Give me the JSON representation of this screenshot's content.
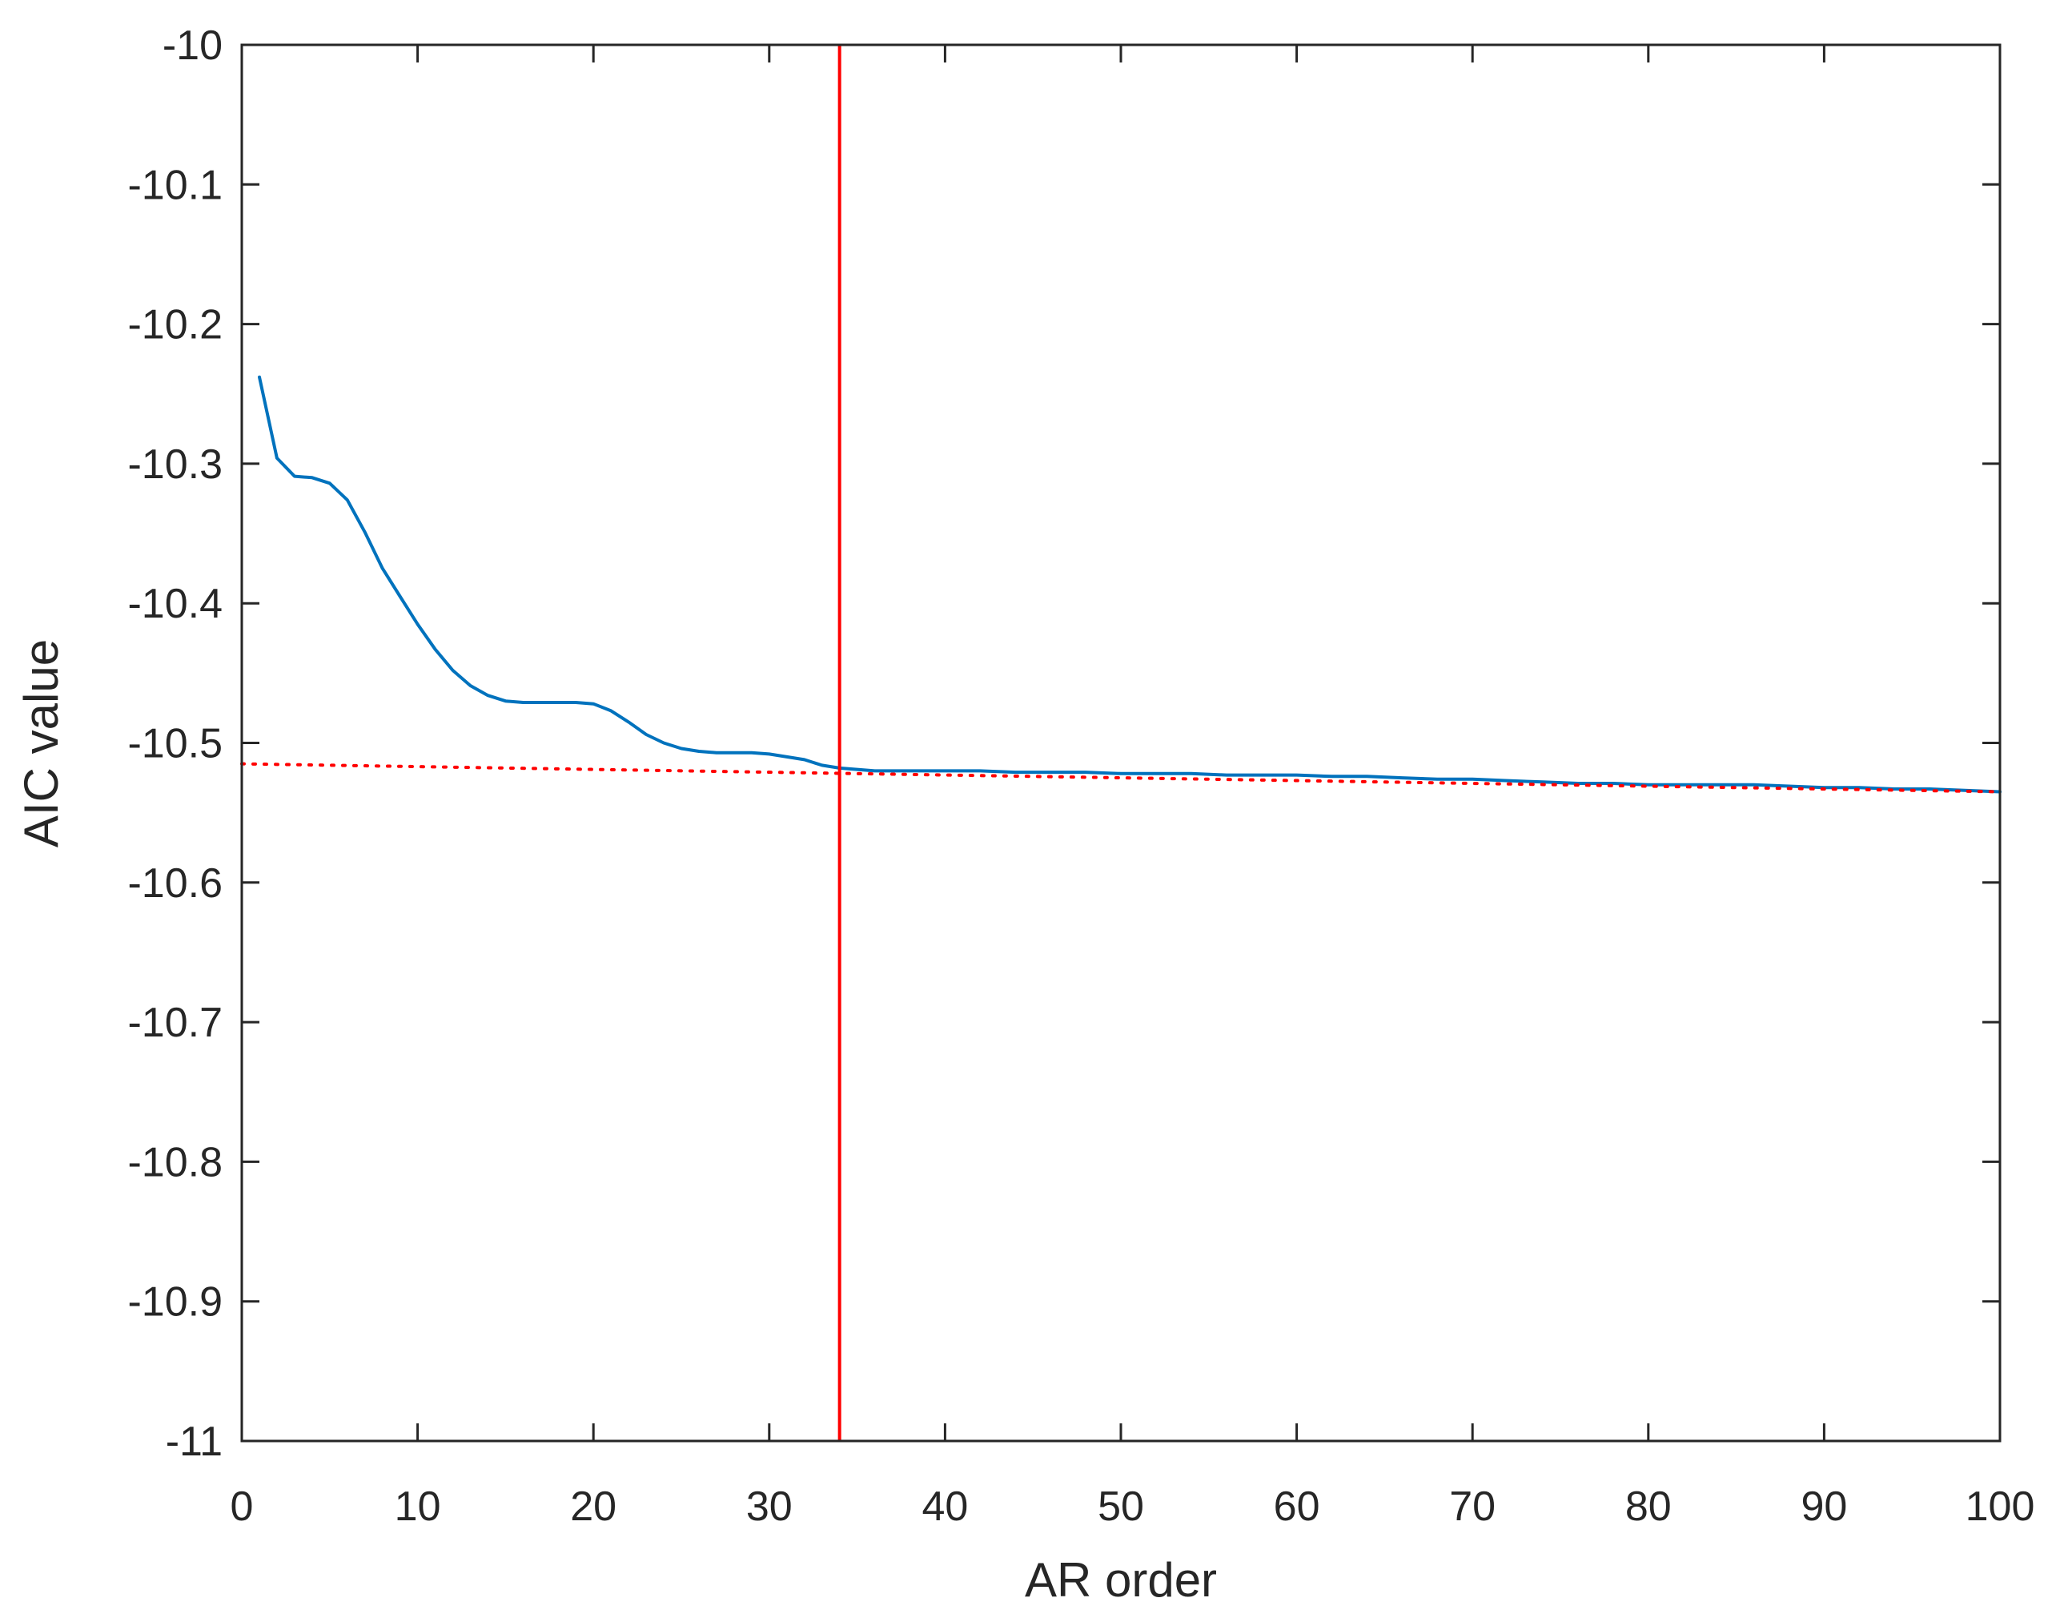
{
  "chart_data": {
    "type": "line",
    "title": "",
    "xlabel": "AR order",
    "ylabel": "AIC value",
    "xlim": [
      0,
      100
    ],
    "ylim": [
      -11,
      -10
    ],
    "xticks": [
      0,
      10,
      20,
      30,
      40,
      50,
      60,
      70,
      80,
      90,
      100
    ],
    "yticks": [
      -10,
      -10.1,
      -10.2,
      -10.3,
      -10.4,
      -10.5,
      -10.6,
      -10.7,
      -10.8,
      -10.9,
      -11
    ],
    "xtick_labels": [
      "0",
      "10",
      "20",
      "30",
      "40",
      "50",
      "60",
      "70",
      "80",
      "90",
      "100"
    ],
    "ytick_labels": [
      "-10",
      "-10.1",
      "-10.2",
      "-10.3",
      "-10.4",
      "-10.5",
      "-10.6",
      "-10.7",
      "-10.8",
      "-10.9",
      "-11"
    ],
    "grid": false,
    "box": true,
    "series": [
      {
        "style": "solid",
        "color": "#0072BD",
        "x": [
          1,
          2,
          3,
          4,
          5,
          6,
          7,
          8,
          9,
          10,
          11,
          12,
          13,
          14,
          15,
          16,
          17,
          18,
          19,
          20,
          21,
          22,
          23,
          24,
          25,
          26,
          27,
          28,
          29,
          30,
          31,
          32,
          33,
          34,
          35,
          36,
          37,
          38,
          39,
          40,
          42,
          44,
          46,
          48,
          50,
          52,
          54,
          56,
          58,
          60,
          62,
          64,
          66,
          68,
          70,
          72,
          74,
          76,
          78,
          80,
          82,
          84,
          86,
          88,
          90,
          92,
          94,
          96,
          98,
          100
        ],
        "y": [
          -10.238,
          -10.296,
          -10.309,
          -10.31,
          -10.314,
          -10.326,
          -10.349,
          -10.375,
          -10.395,
          -10.415,
          -10.433,
          -10.448,
          -10.459,
          -10.466,
          -10.47,
          -10.471,
          -10.471,
          -10.471,
          -10.471,
          -10.472,
          -10.477,
          -10.485,
          -10.494,
          -10.5,
          -10.504,
          -10.506,
          -10.507,
          -10.507,
          -10.507,
          -10.508,
          -10.51,
          -10.512,
          -10.516,
          -10.518,
          -10.519,
          -10.52,
          -10.52,
          -10.52,
          -10.52,
          -10.52,
          -10.52,
          -10.521,
          -10.521,
          -10.521,
          -10.522,
          -10.522,
          -10.522,
          -10.523,
          -10.523,
          -10.523,
          -10.524,
          -10.524,
          -10.525,
          -10.526,
          -10.526,
          -10.527,
          -10.528,
          -10.529,
          -10.529,
          -10.53,
          -10.53,
          -10.53,
          -10.53,
          -10.531,
          -10.532,
          -10.532,
          -10.533,
          -10.533,
          -10.534,
          -10.535
        ]
      },
      {
        "style": "dotted",
        "color": "#FF0000",
        "x": [
          0,
          100
        ],
        "y": [
          -10.515,
          -10.535
        ]
      }
    ],
    "vlines": [
      {
        "x": 34,
        "color": "#FF0000",
        "style": "solid"
      }
    ]
  }
}
